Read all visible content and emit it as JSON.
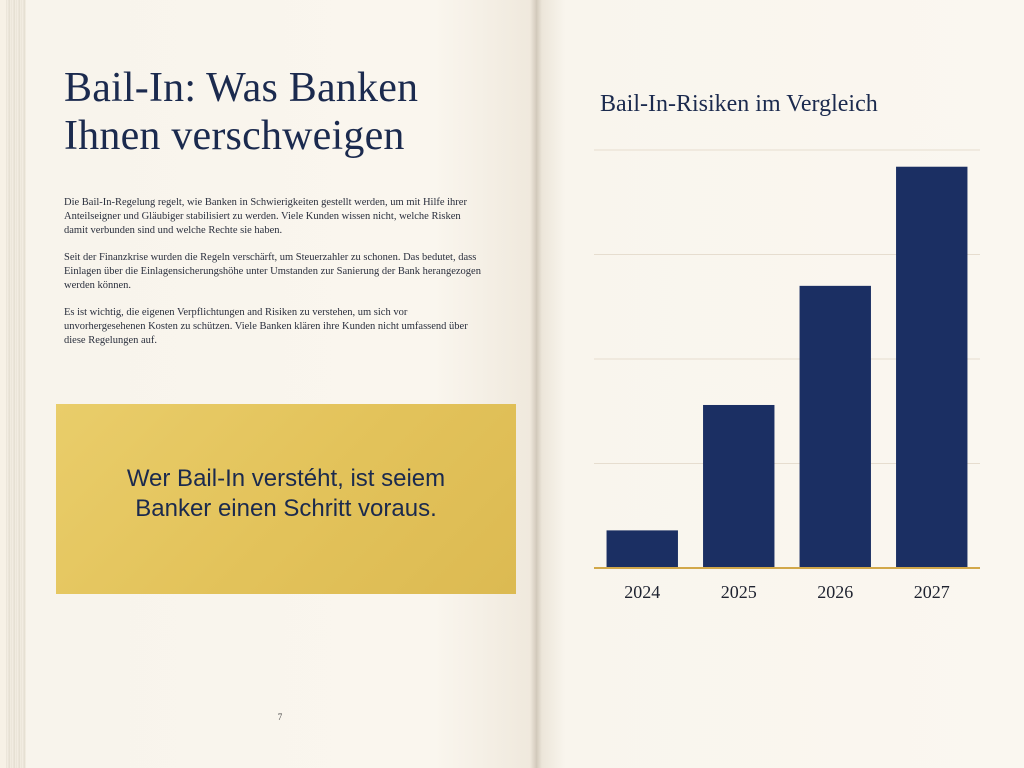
{
  "left_page": {
    "title_line1": "Bail-In: Was Banken",
    "title_line2": "Ihnen verschweigen",
    "paragraphs": [
      "Die Bail-In-Regelung regelt, wie Banken in Schwierigkeiten gestellt werden, um mit Hilfe ihrer Anteilseigner und Gläubiger stabilisiert zu werden. Viele Kunden wissen nicht, welche Risken damit verbunden sind und welche Rechte sie haben.",
      "Seit der Finanzkrise wurden die Regeln verschärft, um Steuerzahler zu schonen. Das bedutet, dass Einlagen über die Einlagensicherungshöhe unter Umstanden zur Sanierung der Bank herangezogen werden können.",
      "Es ist wichtig, die eigenen Verpflichtungen and Risiken zu verstehen, um sich vor unvorhergesehenen Kosten zu schützen. Viele Banken klären ihre Kunden nicht umfassend über diese Regelungen auf."
    ],
    "callout": "Wer Bail-In verstéht, ist seiem Banker einen Schritt voraus.",
    "page_number": "7"
  },
  "chart_data": {
    "type": "bar",
    "title": "Bail-In-Risiken im Vergleich",
    "categories": [
      "2024",
      "2025",
      "2026",
      "2027"
    ],
    "values": [
      0.9,
      3.9,
      6.75,
      9.6
    ],
    "ylim": [
      0,
      10
    ],
    "xlabel": "",
    "ylabel": "",
    "grid": true,
    "bar_color": "#1b2f63",
    "baseline_color": "#d2a84a",
    "grid_color": "#e6ddcf"
  }
}
